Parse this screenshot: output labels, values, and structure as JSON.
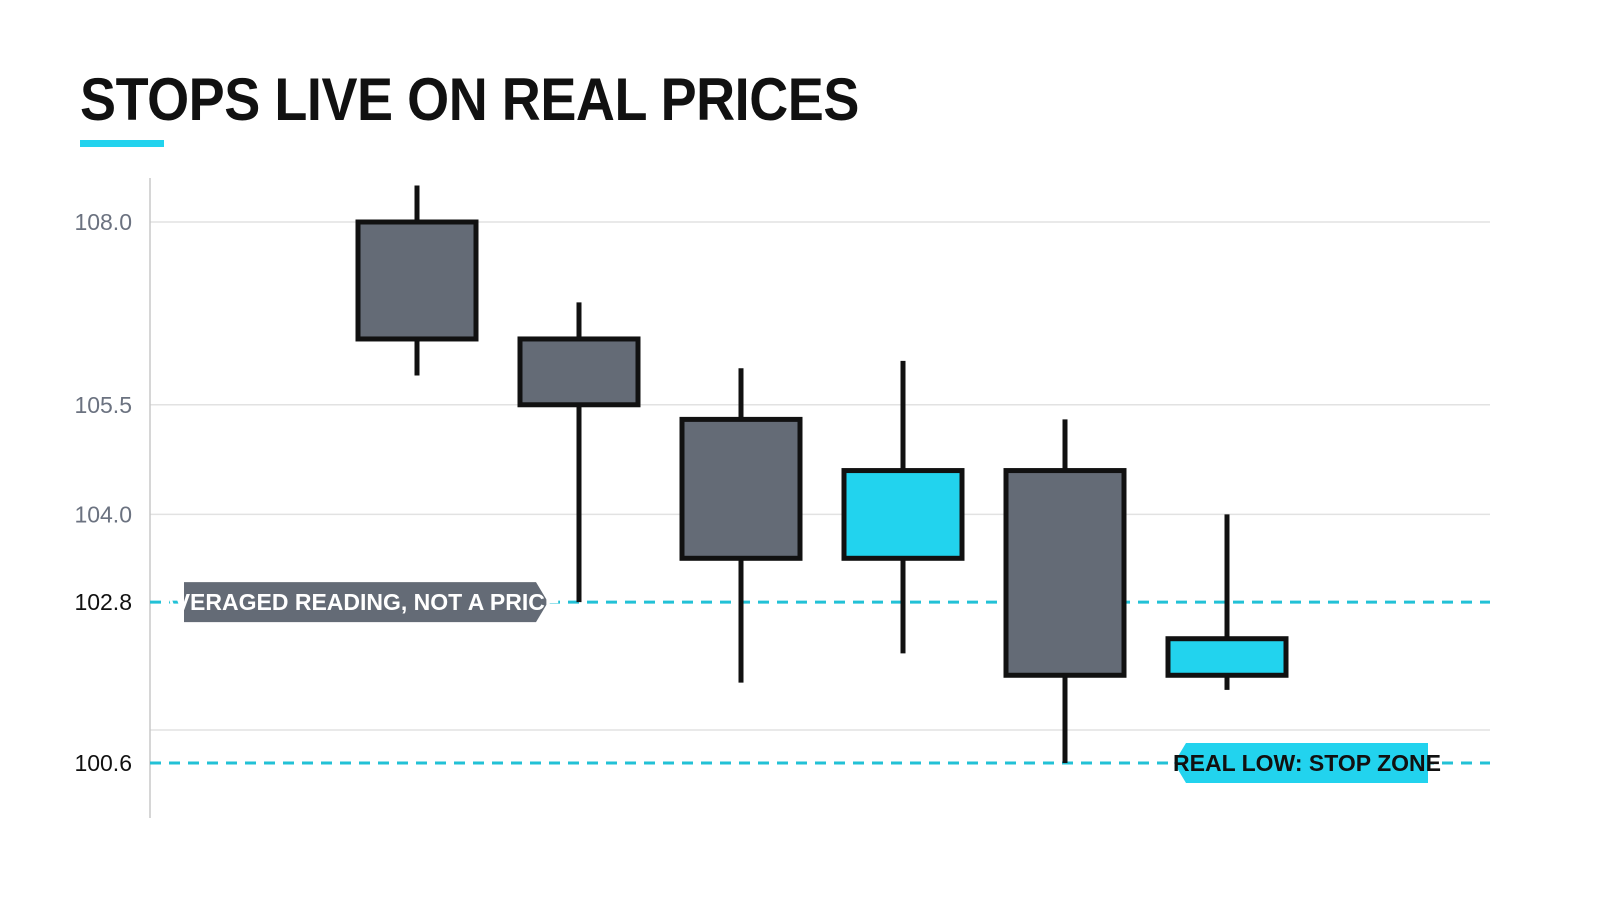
{
  "chart_data": {
    "type": "candlestick",
    "title": "STOPS LIVE ON REAL PRICES",
    "xlabel": "",
    "ylabel": "",
    "ylim": [
      99.6,
      108.4
    ],
    "grid": true,
    "y_ticks": [
      108.0,
      105.5,
      104.0,
      102.8,
      100.6
    ],
    "y_tick_labels": [
      "108.0",
      "105.5",
      "104.0",
      "102.8",
      "100.6"
    ],
    "candles": [
      {
        "open": 106.4,
        "high": 108.5,
        "low": 105.9,
        "close": 108.0,
        "color": "#646b76"
      },
      {
        "open": 105.5,
        "high": 106.9,
        "low": 102.8,
        "close": 106.4,
        "color": "#646b76"
      },
      {
        "open": 103.4,
        "high": 106.0,
        "low": 101.7,
        "close": 105.3,
        "color": "#646b76"
      },
      {
        "open": 103.4,
        "high": 106.1,
        "low": 102.1,
        "close": 104.6,
        "color": "#22d3ee"
      },
      {
        "open": 101.8,
        "high": 105.3,
        "low": 100.6,
        "close": 104.6,
        "color": "#646b76"
      },
      {
        "open": 101.8,
        "high": 104.0,
        "low": 101.6,
        "close": 102.3,
        "color": "#22d3ee"
      }
    ],
    "reference_lines": [
      {
        "value": 102.8,
        "label": "AVERAGED READING, NOT A PRICE",
        "style": "dashed",
        "color": "#22c1d6",
        "callout_bg": "#646b76",
        "callout_text_color": "#ffffff",
        "callout_position": "left"
      },
      {
        "value": 100.6,
        "label": "REAL LOW: STOP ZONE",
        "style": "dashed",
        "color": "#22c1d6",
        "callout_bg": "#22d3ee",
        "callout_text_color": "#111111",
        "callout_position": "right"
      }
    ]
  },
  "colors": {
    "accent": "#22d3ee",
    "bear_body": "#646b76",
    "outline": "#111111",
    "grid": "#e2e2e2",
    "axis": "#c8c8c8"
  }
}
